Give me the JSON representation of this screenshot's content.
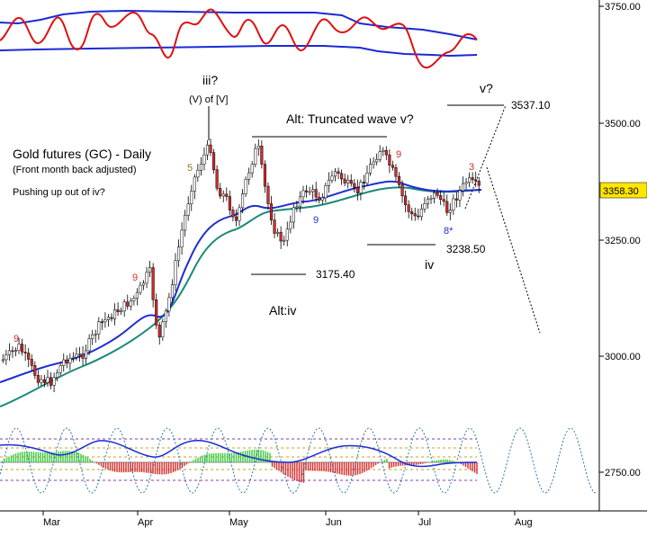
{
  "chart_data": {
    "type": "candlestick",
    "title": "Gold futures (GC) - Daily",
    "subtitle": "(Front month back adjusted)",
    "note": "Pushing up out of iv?",
    "last_price": "3358.30",
    "y_ticks": [
      "3750.00",
      "3500.00",
      "3250.00",
      "3000.00",
      "2750.00"
    ],
    "x_ticks": [
      "Mar",
      "Apr",
      "May",
      "Jun",
      "Jul",
      "Aug"
    ],
    "wave_labels": {
      "iii": "iii?",
      "iii_sub": "(V) of [V]",
      "alt_trunc": "Alt: Truncated wave v?",
      "v": "v?",
      "iv": "iv",
      "alt_iv": "Alt:iv"
    },
    "levels": {
      "target": "3537.10",
      "alt_iv_low": "3175.40",
      "iv_low": "3238.50"
    },
    "counts": {
      "c1": "9",
      "c2": "9",
      "c3": "5",
      "c4": "9",
      "c5": "9",
      "c6": "3",
      "c7": "8*"
    },
    "colors": {
      "up": "#ffffff",
      "down": "#d62a2a",
      "ma_fast": "#1f2fd0",
      "ma_slow": "#1a8a7a",
      "oscillator": "#e01010",
      "band": "#1a2ad6",
      "cycle": "#2b7aa8"
    }
  }
}
